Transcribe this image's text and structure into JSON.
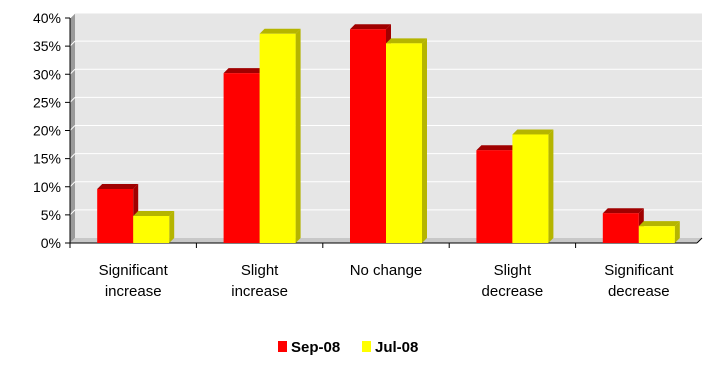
{
  "chart_data": {
    "type": "bar",
    "categories": [
      [
        "Significant",
        "increase"
      ],
      [
        "Slight",
        "increase"
      ],
      [
        "No change"
      ],
      [
        "Slight",
        "decrease"
      ],
      [
        "Significant",
        "decrease"
      ]
    ],
    "series": [
      {
        "name": "Sep-08",
        "color": "#FF0000",
        "shade": "#A00000",
        "values": [
          9.6,
          30.2,
          38.0,
          16.5,
          5.3
        ]
      },
      {
        "name": "Jul-08",
        "color": "#FFFF00",
        "shade": "#B5B500",
        "values": [
          4.8,
          37.2,
          35.5,
          19.3,
          3.0
        ]
      }
    ],
    "ylim": [
      0,
      40
    ],
    "yticks": [
      0,
      5,
      10,
      15,
      20,
      25,
      30,
      35,
      40
    ],
    "ytick_labels": [
      "0%",
      "5%",
      "10%",
      "15%",
      "20%",
      "25%",
      "30%",
      "35%",
      "40%"
    ],
    "title": "",
    "xlabel": "",
    "ylabel": "",
    "grid": true,
    "legend_position": "bottom",
    "colors": {
      "plot_background": "#E6E6E6",
      "wall_side": "#9A9A9A",
      "floor": "#C8C8C8",
      "gridline": "#FFFFFF"
    }
  }
}
